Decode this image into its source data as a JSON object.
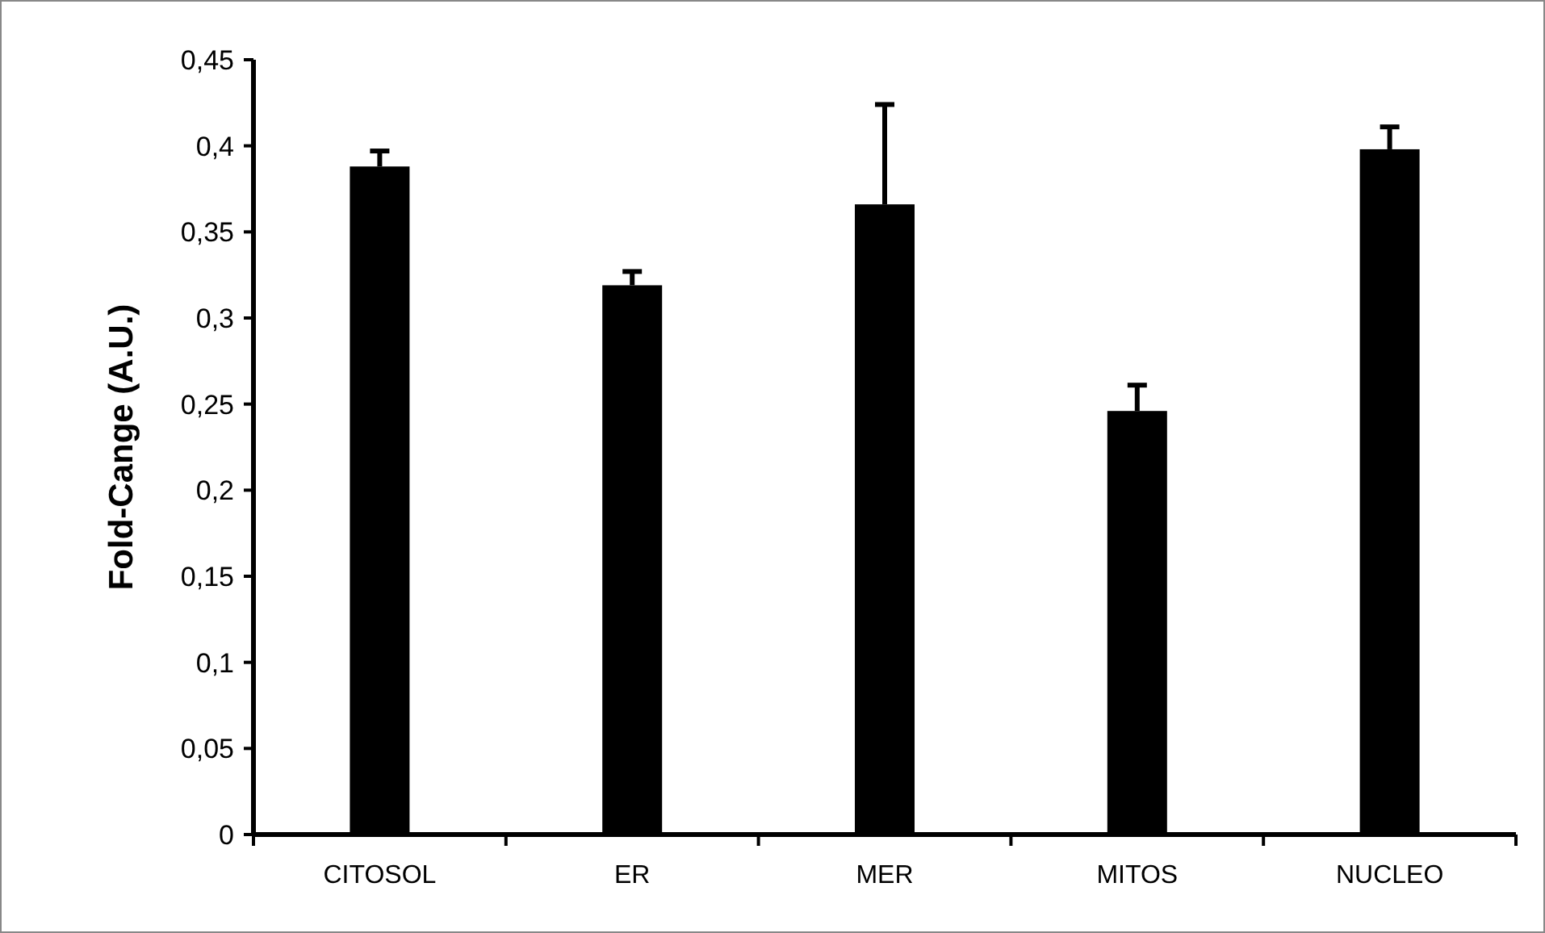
{
  "chart_data": {
    "type": "bar",
    "ylabel": "Fold-Cange (A.U.)",
    "categories": [
      "CITOSOL",
      "ER",
      "MER",
      "MITOS",
      "NUCLEO"
    ],
    "values": [
      0.388,
      0.319,
      0.366,
      0.246,
      0.398
    ],
    "errors": [
      [
        0.388,
        0.397
      ],
      [
        0.319,
        0.327
      ],
      [
        0.366,
        0.424
      ],
      [
        0.246,
        0.261
      ],
      [
        0.398,
        0.411
      ]
    ],
    "color": "#000000",
    "ylim": [
      0,
      0.45
    ],
    "yticks": [
      0,
      {
        "value": 0.05,
        "label": "0,05"
      },
      {
        "value": 0.1,
        "label": "0,1"
      },
      {
        "value": 0.15,
        "label": "0,15"
      },
      {
        "value": 0.2,
        "label": "0,2"
      },
      {
        "value": 0.25,
        "label": "0,25"
      },
      {
        "value": 0.3,
        "label": "0,3"
      },
      {
        "value": 0.35,
        "label": "0,35"
      },
      {
        "value": 0.4,
        "label": "0,4"
      },
      {
        "value": 0.45,
        "label": "0,45"
      }
    ],
    "grid": false
  }
}
